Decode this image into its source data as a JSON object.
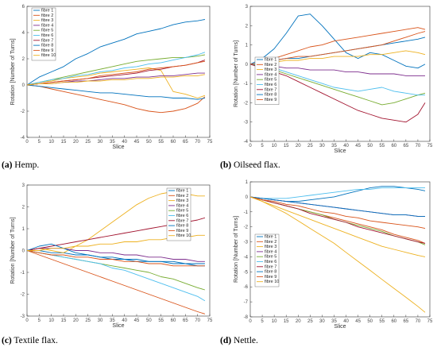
{
  "colors": [
    "#0072BD",
    "#D95319",
    "#EDB120",
    "#7E2F8E",
    "#77AC30",
    "#4DBEEE",
    "#A2142F",
    "#0072BD",
    "#D95319",
    "#EDB120"
  ],
  "chart_data": [
    {
      "id": "a",
      "type": "line",
      "caption": {
        "letter": "(a)",
        "text": " Hemp."
      },
      "xlabel": "Slice",
      "ylabel": "Rotation [Number of Turns]",
      "xlim": [
        0,
        75
      ],
      "ylim": [
        -4,
        6
      ],
      "xticks": [
        0,
        5,
        10,
        15,
        20,
        25,
        30,
        35,
        40,
        45,
        50,
        55,
        60,
        65,
        70,
        75
      ],
      "yticks": [
        -4,
        -2,
        0,
        2,
        4,
        6
      ],
      "legend": "top-left",
      "x": [
        0,
        5,
        10,
        15,
        20,
        25,
        30,
        35,
        40,
        45,
        50,
        55,
        60,
        65,
        70,
        73
      ],
      "series": [
        {
          "name": "fibre 1",
          "values": [
            0,
            0.6,
            1.0,
            1.4,
            2.0,
            2.4,
            2.9,
            3.2,
            3.5,
            3.9,
            4.1,
            4.3,
            4.6,
            4.8,
            4.9,
            5.0
          ]
        },
        {
          "name": "fibre 2",
          "values": [
            0,
            -0.1,
            -0.3,
            -0.5,
            -0.7,
            -0.9,
            -1.1,
            -1.3,
            -1.5,
            -1.8,
            -2.0,
            -2.1,
            -2.0,
            -1.8,
            -1.4,
            -0.9
          ]
        },
        {
          "name": "fibre 3",
          "values": [
            0,
            0.2,
            0.3,
            0.5,
            0.6,
            0.7,
            0.9,
            1.0,
            1.1,
            1.2,
            1.3,
            1.1,
            -0.5,
            -0.7,
            -1.0,
            -0.8
          ]
        },
        {
          "name": "fibre 4",
          "values": [
            0,
            0.1,
            0.1,
            0.2,
            0.3,
            0.3,
            0.4,
            0.5,
            0.5,
            0.6,
            0.6,
            0.7,
            0.7,
            0.8,
            0.9,
            0.9
          ]
        },
        {
          "name": "fibre 5",
          "values": [
            0,
            0.2,
            0.4,
            0.6,
            0.8,
            1.0,
            1.2,
            1.4,
            1.6,
            1.8,
            1.9,
            2.0,
            2.1,
            2.1,
            2.2,
            2.3
          ]
        },
        {
          "name": "fibre 6",
          "values": [
            0,
            0.2,
            0.4,
            0.5,
            0.7,
            0.8,
            1.0,
            1.1,
            1.3,
            1.4,
            1.6,
            1.7,
            1.9,
            2.1,
            2.3,
            2.5
          ]
        },
        {
          "name": "fibre 7",
          "values": [
            0,
            0.1,
            0.2,
            0.3,
            0.4,
            0.5,
            0.6,
            0.7,
            0.8,
            0.9,
            1.1,
            1.2,
            1.4,
            1.5,
            1.7,
            1.9
          ]
        },
        {
          "name": "fibre 8",
          "values": [
            0,
            -0.1,
            -0.2,
            -0.3,
            -0.4,
            -0.5,
            -0.6,
            -0.6,
            -0.7,
            -0.8,
            -0.9,
            -0.9,
            -1.0,
            -1.0,
            -1.1,
            -1.0
          ]
        },
        {
          "name": "fibre 9",
          "values": [
            0,
            0.1,
            0.2,
            0.3,
            0.4,
            0.5,
            0.7,
            0.8,
            0.9,
            1.0,
            1.2,
            1.3,
            1.4,
            1.5,
            1.7,
            1.8
          ]
        },
        {
          "name": "fibre 10",
          "values": [
            0,
            0.1,
            0.1,
            0.2,
            0.2,
            0.3,
            0.3,
            0.4,
            0.4,
            0.5,
            0.5,
            0.6,
            0.6,
            0.7,
            0.7,
            0.8
          ]
        }
      ]
    },
    {
      "id": "b",
      "type": "line",
      "caption": {
        "letter": "(b)",
        "text": " Oilseed flax."
      },
      "xlabel": "Slice",
      "ylabel": "Rotation [Number of Turns]",
      "xlim": [
        0,
        75
      ],
      "ylim": [
        -4,
        3
      ],
      "xticks": [
        0,
        5,
        10,
        15,
        20,
        25,
        30,
        35,
        40,
        45,
        50,
        55,
        60,
        65,
        70,
        75
      ],
      "yticks": [
        -4,
        -3,
        -2,
        -1,
        0,
        1,
        2,
        3
      ],
      "legend": "bottom-left",
      "x": [
        0,
        5,
        10,
        15,
        20,
        25,
        30,
        35,
        40,
        45,
        50,
        55,
        60,
        65,
        70,
        73
      ],
      "series": [
        {
          "name": "fibre 1",
          "values": [
            0,
            0.3,
            0.8,
            1.6,
            2.5,
            2.6,
            2.0,
            1.3,
            0.6,
            0.3,
            0.6,
            0.5,
            0.2,
            -0.1,
            -0.2,
            0.0
          ]
        },
        {
          "name": "fibre 2",
          "values": [
            0,
            0.1,
            0.3,
            0.5,
            0.7,
            0.9,
            1.0,
            1.2,
            1.3,
            1.4,
            1.5,
            1.6,
            1.7,
            1.8,
            1.9,
            1.8
          ]
        },
        {
          "name": "fibre 3",
          "values": [
            0,
            0.1,
            0.1,
            0.2,
            0.2,
            0.3,
            0.3,
            0.4,
            0.4,
            0.4,
            0.5,
            0.5,
            0.6,
            0.7,
            0.6,
            0.5
          ]
        },
        {
          "name": "fibre 4",
          "values": [
            0,
            -0.1,
            -0.1,
            -0.2,
            -0.2,
            -0.3,
            -0.3,
            -0.3,
            -0.4,
            -0.4,
            -0.5,
            -0.5,
            -0.5,
            -0.6,
            -0.6,
            -0.6
          ]
        },
        {
          "name": "fibre 5",
          "values": [
            0,
            -0.1,
            -0.3,
            -0.5,
            -0.7,
            -0.9,
            -1.1,
            -1.3,
            -1.5,
            -1.7,
            -1.9,
            -2.1,
            -2.0,
            -1.8,
            -1.6,
            -1.5
          ]
        },
        {
          "name": "fibre 6",
          "values": [
            0,
            0.0,
            -0.2,
            -0.4,
            -0.6,
            -0.8,
            -1.0,
            -1.2,
            -1.3,
            -1.4,
            -1.3,
            -1.2,
            -1.4,
            -1.5,
            -1.6,
            -1.6
          ]
        },
        {
          "name": "fibre 7",
          "values": [
            0,
            -0.2,
            -0.4,
            -0.6,
            -0.9,
            -1.2,
            -1.5,
            -1.8,
            -2.1,
            -2.4,
            -2.6,
            -2.8,
            -2.9,
            -3.0,
            -2.6,
            -2.0
          ]
        },
        {
          "name": "fibre 8",
          "values": [
            0,
            0.1,
            0.2,
            0.3,
            0.3,
            0.4,
            0.5,
            0.6,
            0.7,
            0.8,
            0.9,
            1.0,
            1.1,
            1.2,
            1.3,
            1.4
          ]
        },
        {
          "name": "fibre 9",
          "values": [
            0,
            0.1,
            0.2,
            0.3,
            0.4,
            0.4,
            0.5,
            0.6,
            0.7,
            0.8,
            0.9,
            1.0,
            1.2,
            1.4,
            1.6,
            1.7
          ]
        }
      ]
    },
    {
      "id": "c",
      "type": "line",
      "caption": {
        "letter": "(c)",
        "text": " Textile flax."
      },
      "xlabel": "Slice",
      "ylabel": "Rotation [Number of Turns]",
      "xlim": [
        0,
        75
      ],
      "ylim": [
        -3,
        3
      ],
      "xticks": [
        0,
        5,
        10,
        15,
        20,
        25,
        30,
        35,
        40,
        45,
        50,
        55,
        60,
        65,
        70,
        75
      ],
      "yticks": [
        -3,
        -2,
        -1,
        0,
        1,
        2,
        3
      ],
      "legend": "top-right",
      "x": [
        0,
        5,
        10,
        15,
        20,
        25,
        30,
        35,
        40,
        45,
        50,
        55,
        60,
        65,
        70,
        73
      ],
      "series": [
        {
          "name": "fibre 1",
          "values": [
            0,
            0.0,
            -0.1,
            -0.1,
            -0.2,
            -0.2,
            -0.3,
            -0.3,
            -0.4,
            -0.4,
            -0.5,
            -0.5,
            -0.5,
            -0.6,
            -0.6,
            -0.6
          ]
        },
        {
          "name": "fibre 2",
          "values": [
            0,
            -0.2,
            -0.4,
            -0.6,
            -0.8,
            -1.0,
            -1.2,
            -1.4,
            -1.6,
            -1.8,
            -2.0,
            -2.2,
            -2.4,
            -2.6,
            -2.8,
            -2.9
          ]
        },
        {
          "name": "fibre 3",
          "values": [
            0,
            0.1,
            0.0,
            -0.1,
            0.2,
            0.5,
            0.9,
            1.3,
            1.7,
            2.1,
            2.4,
            2.6,
            2.7,
            2.6,
            2.5,
            2.5
          ]
        },
        {
          "name": "fibre 4",
          "values": [
            0,
            0.1,
            0.1,
            0.1,
            0.0,
            0.0,
            -0.1,
            -0.1,
            -0.2,
            -0.2,
            -0.3,
            -0.3,
            -0.4,
            -0.4,
            -0.5,
            -0.5
          ]
        },
        {
          "name": "fibre 5",
          "values": [
            0,
            -0.1,
            -0.2,
            -0.3,
            -0.4,
            -0.5,
            -0.6,
            -0.7,
            -0.8,
            -0.9,
            -1.0,
            -1.2,
            -1.3,
            -1.5,
            -1.7,
            -1.8
          ]
        },
        {
          "name": "fibre 6",
          "values": [
            0,
            -0.1,
            -0.2,
            -0.3,
            -0.4,
            -0.5,
            -0.6,
            -0.8,
            -0.9,
            -1.1,
            -1.3,
            -1.5,
            -1.7,
            -1.9,
            -2.1,
            -2.3
          ]
        },
        {
          "name": "fibre 7",
          "values": [
            0,
            0.1,
            0.2,
            0.3,
            0.4,
            0.5,
            0.6,
            0.7,
            0.8,
            0.9,
            1.0,
            1.1,
            1.2,
            1.3,
            1.4,
            1.5
          ]
        },
        {
          "name": "fibre 8",
          "values": [
            0,
            0.2,
            0.3,
            0.1,
            -0.1,
            -0.2,
            -0.3,
            -0.4,
            -0.4,
            -0.5,
            -0.5,
            -0.5,
            -0.6,
            -0.6,
            -0.7,
            -0.7
          ]
        },
        {
          "name": "fibre 9",
          "values": [
            0,
            -0.1,
            -0.2,
            -0.2,
            -0.3,
            -0.3,
            -0.4,
            -0.4,
            -0.5,
            -0.5,
            -0.6,
            -0.6,
            -0.7,
            -0.7,
            -0.7,
            -0.7
          ]
        },
        {
          "name": "fibre 10",
          "values": [
            0,
            0.0,
            0.1,
            0.1,
            0.2,
            0.2,
            0.3,
            0.3,
            0.4,
            0.4,
            0.5,
            0.5,
            0.6,
            0.6,
            0.7,
            0.7
          ]
        }
      ]
    },
    {
      "id": "d",
      "type": "line",
      "caption": {
        "letter": "(d)",
        "text": " Nettle."
      },
      "xlabel": "Slice",
      "ylabel": "Rotation [Number of Turns]",
      "xlim": [
        0,
        75
      ],
      "ylim": [
        -8,
        1
      ],
      "xticks": [
        0,
        5,
        10,
        15,
        20,
        25,
        30,
        35,
        40,
        45,
        50,
        55,
        60,
        65,
        70,
        75
      ],
      "yticks": [
        -8,
        -7,
        -6,
        -5,
        -4,
        -3,
        -2,
        -1,
        0,
        1
      ],
      "legend": "middle-left",
      "x": [
        0,
        5,
        10,
        15,
        20,
        25,
        30,
        35,
        40,
        45,
        50,
        55,
        60,
        65,
        70,
        73
      ],
      "series": [
        {
          "name": "fibre 1",
          "values": [
            0,
            -0.1,
            -0.2,
            -0.3,
            -0.3,
            -0.2,
            -0.1,
            0.0,
            0.2,
            0.4,
            0.6,
            0.7,
            0.7,
            0.6,
            0.5,
            0.4
          ]
        },
        {
          "name": "fibre 2",
          "values": [
            0,
            -0.2,
            -0.4,
            -0.6,
            -0.8,
            -1.0,
            -1.2,
            -1.4,
            -1.6,
            -1.8,
            -2.0,
            -2.2,
            -2.5,
            -2.7,
            -2.9,
            -3.1
          ]
        },
        {
          "name": "fibre 3",
          "values": [
            0,
            -0.3,
            -0.7,
            -1.1,
            -1.6,
            -2.1,
            -2.6,
            -3.1,
            -3.7,
            -4.3,
            -4.9,
            -5.5,
            -6.1,
            -6.7,
            -7.3,
            -7.7
          ]
        },
        {
          "name": "fibre 4",
          "values": [
            0,
            -0.1,
            -0.2,
            -0.3,
            -0.4,
            -0.5,
            -0.6,
            -0.7,
            -0.8,
            -0.9,
            -1.0,
            -1.1,
            -1.2,
            -1.2,
            -1.3,
            -1.3
          ]
        },
        {
          "name": "fibre 5",
          "values": [
            0,
            -0.2,
            -0.4,
            -0.6,
            -0.8,
            -1.0,
            -1.2,
            -1.5,
            -1.7,
            -1.9,
            -2.1,
            -2.3,
            -2.6,
            -2.8,
            -3.0,
            -3.2
          ]
        },
        {
          "name": "fibre 6",
          "values": [
            0,
            -0.1,
            -0.1,
            -0.1,
            0.0,
            0.1,
            0.2,
            0.3,
            0.4,
            0.5,
            0.5,
            0.6,
            0.6,
            0.6,
            0.6,
            0.6
          ]
        },
        {
          "name": "fibre 7",
          "values": [
            0,
            -0.2,
            -0.4,
            -0.6,
            -0.8,
            -1.1,
            -1.3,
            -1.5,
            -1.7,
            -2.0,
            -2.2,
            -2.4,
            -2.6,
            -2.8,
            -3.0,
            -3.1
          ]
        },
        {
          "name": "fibre 8",
          "values": [
            0,
            -0.1,
            -0.2,
            -0.3,
            -0.4,
            -0.5,
            -0.6,
            -0.7,
            -0.8,
            -0.9,
            -1.0,
            -1.1,
            -1.2,
            -1.2,
            -1.3,
            -1.3
          ]
        },
        {
          "name": "fibre 9",
          "values": [
            0,
            -0.2,
            -0.3,
            -0.5,
            -0.6,
            -0.8,
            -1.0,
            -1.1,
            -1.3,
            -1.4,
            -1.6,
            -1.7,
            -1.8,
            -1.9,
            -2.0,
            -2.1
          ]
        },
        {
          "name": "fibre 10",
          "values": [
            0,
            -0.3,
            -0.6,
            -0.9,
            -1.2,
            -1.5,
            -1.8,
            -2.1,
            -2.4,
            -2.7,
            -3.0,
            -3.3,
            -3.5,
            -3.7,
            -3.9,
            -4.0
          ]
        }
      ]
    }
  ]
}
